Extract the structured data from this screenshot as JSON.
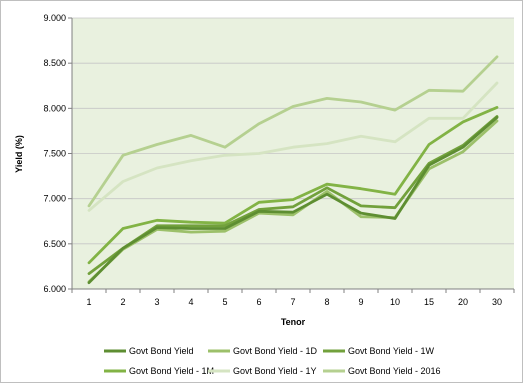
{
  "chart_data": {
    "type": "line",
    "xlabel": "Tenor",
    "ylabel": "Yield (%)",
    "categories": [
      "1",
      "2",
      "3",
      "4",
      "5",
      "6",
      "7",
      "8",
      "9",
      "10",
      "15",
      "20",
      "30"
    ],
    "ylim": [
      6.0,
      9.0
    ],
    "yticks": [
      "6.000",
      "6.500",
      "7.000",
      "7.500",
      "8.000",
      "8.500",
      "9.000"
    ],
    "grid": "horizontal",
    "legend_position": "bottom",
    "plot_background": "#e9f1df",
    "series": [
      {
        "name": "Govt Bond Yield",
        "color": "#5e8e32",
        "values": [
          6.07,
          6.45,
          6.68,
          6.67,
          6.67,
          6.86,
          6.85,
          7.05,
          6.84,
          6.78,
          7.37,
          7.57,
          7.9
        ]
      },
      {
        "name": "Govt Bond Yield - 1D",
        "color": "#9cc06a",
        "values": [
          6.08,
          6.44,
          6.66,
          6.63,
          6.64,
          6.84,
          6.82,
          7.08,
          6.8,
          6.79,
          7.33,
          7.52,
          7.86
        ]
      },
      {
        "name": "Govt Bond Yield - 1W",
        "color": "#72a13c",
        "values": [
          6.17,
          6.45,
          6.7,
          6.7,
          6.7,
          6.88,
          6.91,
          7.12,
          6.92,
          6.9,
          7.39,
          7.59,
          7.91
        ]
      },
      {
        "name": "Govt Bond Yield - 1M",
        "color": "#82b345",
        "values": [
          6.29,
          6.67,
          6.76,
          6.74,
          6.73,
          6.96,
          6.99,
          7.16,
          7.11,
          7.05,
          7.6,
          7.85,
          8.01
        ]
      },
      {
        "name": "Govt Bond Yield - 1Y",
        "color": "#d5e4c2",
        "values": [
          6.87,
          7.19,
          7.34,
          7.42,
          7.48,
          7.5,
          7.57,
          7.61,
          7.69,
          7.63,
          7.89,
          7.89,
          8.28
        ]
      },
      {
        "name": "Govt Bond Yield - 2016",
        "color": "#b5d090",
        "values": [
          6.92,
          7.48,
          7.6,
          7.7,
          7.57,
          7.83,
          8.02,
          8.11,
          8.07,
          7.98,
          8.2,
          8.19,
          8.57
        ]
      }
    ]
  }
}
